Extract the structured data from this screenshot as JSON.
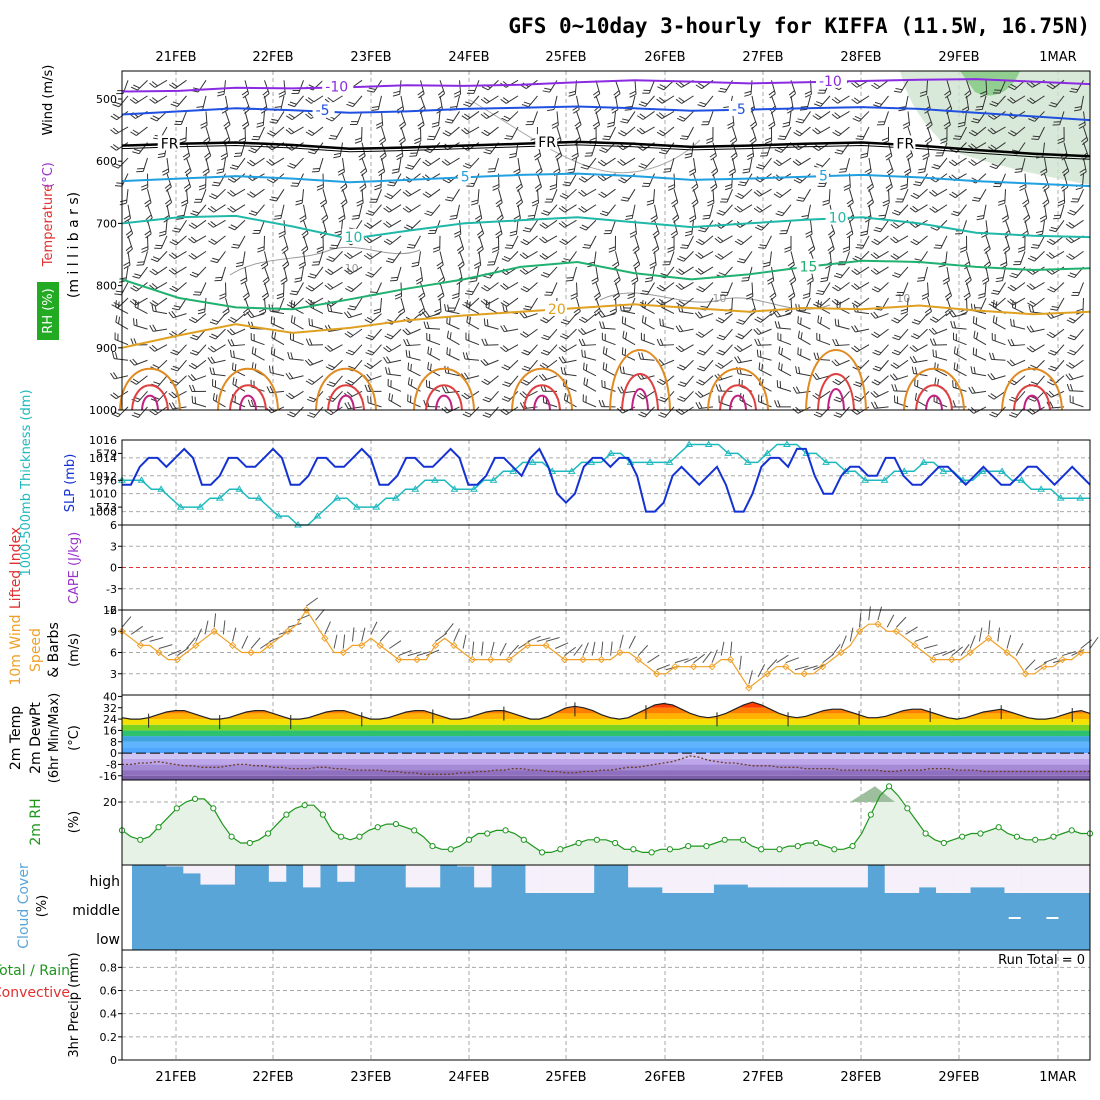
{
  "title": "GFS 0~10day 3-hourly for KIFFA (11.5W, 16.75N)",
  "dates": [
    "21FEB",
    "22FEB",
    "23FEB",
    "24FEB",
    "25FEB",
    "26FEB",
    "27FEB",
    "28FEB",
    "29FEB",
    "1MAR"
  ],
  "colors": {
    "frame": "#000000",
    "grid": "#aaaaaa",
    "slp": "#1432d2",
    "thickness": "#1eb9be",
    "wind10m": "#f0a028",
    "rh": "#1e961e",
    "cloud": "#5aa5d7",
    "cloud_clear": "#f5f0fa",
    "lifted_zero": "#e63232",
    "barb": "#333333"
  },
  "chart_data": [
    {
      "type": "contour",
      "name": "upper-air",
      "ylabel_parts": [
        {
          "text": "RH (%)",
          "color": "#ffffff",
          "bg": "#22aa22"
        },
        {
          "text": "Temperature",
          "color": "#e03030"
        },
        {
          "text": "(°C)",
          "color": "#9933cc"
        },
        {
          "text": "Wind (m/s)",
          "color": "#000000"
        }
      ],
      "ylabel_right": "(m i l l i b a r s)",
      "y_ticks": [
        500,
        600,
        700,
        800,
        900,
        1000
      ],
      "ylim": [
        1000,
        455
      ],
      "isotherms": [
        {
          "label": "-10",
          "value": -10,
          "color": "#8a2be2",
          "levels": [
            488,
            487,
            482,
            483,
            481,
            478,
            479,
            477,
            473,
            470,
            472,
            475,
            473,
            471,
            469,
            468,
            472,
            476
          ]
        },
        {
          "label": "-5",
          "value": -5,
          "color": "#2050e0",
          "levels": [
            525,
            520,
            515,
            518,
            522,
            520,
            516,
            514,
            512,
            515,
            519,
            517,
            515,
            513,
            516,
            522,
            528,
            534
          ]
        },
        {
          "label": "FR",
          "value": 0,
          "color": "#000000",
          "levels": [
            575,
            572,
            570,
            574,
            580,
            578,
            575,
            572,
            569,
            572,
            577,
            575,
            572,
            570,
            575,
            582,
            588,
            592
          ]
        },
        {
          "label": "5",
          "value": 5,
          "color": "#20a0e0",
          "levels": [
            632,
            628,
            624,
            628,
            634,
            630,
            626,
            622,
            620,
            624,
            630,
            628,
            625,
            622,
            626,
            632,
            636,
            640
          ]
        },
        {
          "label": "10",
          "value": 10,
          "color": "#20b8a8",
          "levels": [
            700,
            690,
            688,
            705,
            725,
            712,
            700,
            695,
            690,
            698,
            706,
            700,
            694,
            690,
            700,
            715,
            720,
            722
          ]
        },
        {
          "label": "15",
          "value": 15,
          "color": "#20b070",
          "levels": [
            790,
            820,
            835,
            838,
            822,
            805,
            790,
            770,
            762,
            780,
            790,
            782,
            770,
            760,
            762,
            770,
            775,
            772
          ]
        },
        {
          "label": "20",
          "value": 20,
          "color": "#e0a020",
          "levels": [
            900,
            880,
            862,
            876,
            868,
            856,
            848,
            842,
            836,
            830,
            836,
            842,
            836,
            838,
            832,
            840,
            846,
            842
          ]
        }
      ],
      "contour_labels": [
        {
          "text": "-10",
          "value": -10,
          "x_frac": 0.21,
          "color": "#8a2be2"
        },
        {
          "text": "-5",
          "value": -5,
          "x_frac": 0.2,
          "color": "#2050e0"
        },
        {
          "text": "FR",
          "value": 0,
          "x_frac": 0.04,
          "color": "#000000"
        },
        {
          "text": "FR",
          "value": 0,
          "x_frac": 0.43,
          "color": "#000000"
        },
        {
          "text": "FR",
          "value": 0,
          "x_frac": 0.8,
          "color": "#000000"
        },
        {
          "text": "5",
          "value": 5,
          "x_frac": 0.35,
          "color": "#20a0e0"
        },
        {
          "text": "10",
          "value": 10,
          "x_frac": 0.23,
          "color": "#20b8a8"
        },
        {
          "text": "15",
          "value": 15,
          "x_frac": 0.7,
          "color": "#20b070"
        },
        {
          "text": "20",
          "value": 20,
          "x_frac": 0.44,
          "color": "#e0a020"
        },
        {
          "text": "-10",
          "value": -10,
          "x_frac": 0.72,
          "color": "#8a2be2"
        },
        {
          "text": "-5",
          "value": -5,
          "x_frac": 0.63,
          "color": "#2050e0"
        },
        {
          "text": "5",
          "value": 5,
          "x_frac": 0.72,
          "color": "#20a0e0"
        },
        {
          "text": "10",
          "value": 10,
          "x_frac": 0.73,
          "color": "#20b8a8"
        }
      ],
      "rh_isolines": [
        {
          "label": "10",
          "x_frac": 0.23
        },
        {
          "label": "10",
          "x_frac": 0.61
        },
        {
          "label": "10",
          "x_frac": 0.8
        }
      ]
    },
    {
      "type": "line",
      "name": "slp-thickness",
      "ylabel_left": "1000-500mb Thickness (dm)",
      "ylabel_right": "SLP (mb)",
      "left_ticks": [
        573,
        576,
        579
      ],
      "left_lim": [
        571,
        580.5
      ],
      "right_ticks": [
        1008,
        1010,
        1012,
        1014,
        1016
      ],
      "right_lim": [
        1006.5,
        1016
      ],
      "series": [
        {
          "axis": "right",
          "values": [
            1011,
            1011,
            1013,
            1014,
            1014,
            1013,
            1014,
            1015,
            1014,
            1011,
            1011,
            1012,
            1014,
            1014,
            1013,
            1013,
            1014,
            1015,
            1014,
            1011,
            1011,
            1012,
            1014,
            1014,
            1013,
            1013,
            1014,
            1015,
            1014,
            1011,
            1011,
            1012,
            1014,
            1014,
            1013,
            1013,
            1014,
            1015,
            1014,
            1011,
            1011,
            1012,
            1014,
            1014,
            1013,
            1012,
            1014,
            1015,
            1013,
            1010,
            1009,
            1010,
            1013,
            1014,
            1014,
            1013,
            1014,
            1014,
            1012,
            1008,
            1008,
            1009,
            1012,
            1013,
            1012,
            1011,
            1012,
            1013,
            1011,
            1008,
            1008,
            1010,
            1013,
            1014,
            1014,
            1013,
            1015,
            1015,
            1012,
            1010,
            1010,
            1012,
            1013,
            1013,
            1012,
            1012,
            1014,
            1014,
            1012,
            1011,
            1011,
            1012,
            1013,
            1013,
            1012,
            1011,
            1012,
            1013,
            1012,
            1011,
            1011,
            1012,
            1013,
            1013,
            1012,
            1011,
            1012,
            1013,
            1012,
            1011
          ]
        },
        {
          "axis": "left",
          "values": [
            576,
            576,
            576,
            575,
            575,
            574,
            573,
            573,
            573,
            574,
            574,
            575,
            575,
            574,
            574,
            573,
            572,
            572,
            571,
            571,
            572,
            573,
            574,
            574,
            573,
            573,
            573,
            574,
            574,
            575,
            575,
            576,
            576,
            576,
            575,
            575,
            575,
            576,
            576,
            577,
            577,
            578,
            578,
            578,
            577,
            577,
            577,
            578,
            578,
            578,
            579,
            579,
            578,
            578,
            578,
            578,
            578,
            579,
            580,
            580,
            580,
            580,
            579,
            579,
            578,
            578,
            579,
            580,
            580,
            580,
            579,
            579,
            578,
            578,
            577,
            577,
            576,
            576,
            576,
            577,
            577,
            577,
            578,
            578,
            577,
            577,
            576,
            576,
            577,
            577,
            577,
            576,
            576,
            575,
            575,
            575,
            574,
            574,
            574,
            574
          ]
        }
      ]
    },
    {
      "type": "line",
      "name": "lifted-cape",
      "ylabel_left": "Lifted Index",
      "ylabel_right": "CAPE (J/kg)",
      "y_ticks": [
        6,
        3,
        0,
        -3,
        -6
      ],
      "ylim": [
        6,
        -6
      ]
    },
    {
      "type": "line",
      "name": "wind10m",
      "ylabel_left": "10m Wind Speed & Barbs",
      "ylabel_right": "(m/s)",
      "y_ticks": [
        3,
        6,
        9,
        12
      ],
      "ylim": [
        0,
        12
      ],
      "values": [
        9,
        8,
        7,
        7,
        6,
        5,
        5,
        6,
        7,
        8,
        9,
        8,
        7,
        6,
        6,
        6,
        7,
        8,
        9,
        10,
        12,
        10,
        8,
        6,
        6,
        7,
        7,
        8,
        7,
        6,
        5,
        5,
        5,
        5,
        7,
        8,
        7,
        6,
        5,
        5,
        5,
        5,
        5,
        6,
        7,
        7,
        7,
        6,
        5,
        5,
        5,
        5,
        5,
        5,
        6,
        6,
        5,
        4,
        3,
        3,
        4,
        4,
        4,
        4,
        4,
        5,
        5,
        3,
        1,
        2,
        3,
        4,
        4,
        3,
        3,
        3,
        4,
        5,
        6,
        7,
        9,
        10,
        10,
        9,
        9,
        8,
        7,
        6,
        5,
        5,
        5,
        5,
        6,
        7,
        8,
        7,
        6,
        5,
        3,
        3,
        4,
        4,
        5,
        5,
        6,
        6
      ]
    },
    {
      "type": "area",
      "name": "temp-dewpt",
      "ylabel_left": "2m Temp 2m DewPt (6hr Min/Max)",
      "ylabel_right": "(°C)",
      "y_ticks": [
        40,
        32,
        24,
        16,
        8,
        0,
        -8,
        -16
      ],
      "ylim": [
        -19,
        41
      ],
      "temp": [
        25,
        24,
        24,
        25,
        27,
        29,
        30,
        30,
        28,
        26,
        24,
        24,
        25,
        27,
        29,
        30,
        30,
        28,
        26,
        24,
        24,
        25,
        27,
        29,
        30,
        30,
        28,
        26,
        24,
        24,
        25,
        27,
        29,
        30,
        30,
        28,
        26,
        24,
        24,
        25,
        27,
        29,
        30,
        30,
        28,
        26,
        24,
        24,
        26,
        29,
        32,
        33,
        32,
        30,
        27,
        25,
        24,
        25,
        28,
        31,
        34,
        35,
        34,
        31,
        28,
        26,
        25,
        26,
        28,
        31,
        34,
        36,
        34,
        31,
        28,
        26,
        25,
        26,
        28,
        30,
        31,
        31,
        29,
        27,
        25,
        25,
        26,
        28,
        30,
        31,
        31,
        29,
        27,
        25,
        24,
        25,
        27,
        29,
        30,
        31,
        29,
        27,
        25,
        24,
        24,
        25,
        27,
        29,
        30,
        28
      ],
      "dewpt": [
        -8,
        -8,
        -7,
        -7,
        -6,
        -7,
        -8,
        -9,
        -9,
        -10,
        -10,
        -10,
        -9,
        -8,
        -8,
        -9,
        -9,
        -10,
        -10,
        -11,
        -11,
        -11,
        -10,
        -10,
        -11,
        -11,
        -12,
        -12,
        -12,
        -12,
        -13,
        -13,
        -14,
        -14,
        -15,
        -15,
        -15,
        -15,
        -14,
        -14,
        -13,
        -13,
        -12,
        -12,
        -11,
        -11,
        -12,
        -12,
        -13,
        -13,
        -14,
        -14,
        -13,
        -13,
        -12,
        -12,
        -11,
        -10,
        -10,
        -9,
        -8,
        -7,
        -6,
        -4,
        -2,
        -3,
        -5,
        -6,
        -7,
        -7,
        -8,
        -9,
        -9,
        -9,
        -10,
        -10,
        -10,
        -11,
        -11,
        -11,
        -11,
        -12,
        -12,
        -12,
        -12,
        -12,
        -13,
        -13,
        -12,
        -12,
        -12,
        -11,
        -11,
        -11,
        -12,
        -12,
        -12,
        -13,
        -13,
        -13,
        -13,
        -13,
        -13,
        -13,
        -13,
        -13,
        -13,
        -13,
        -13,
        -13
      ]
    },
    {
      "type": "area",
      "name": "rh2m",
      "ylabel_left": "2m RH",
      "ylabel_right": "(%)",
      "y_ticks": [
        20
      ],
      "ylim": [
        0,
        27
      ],
      "values": [
        11,
        9,
        8,
        9,
        12,
        15,
        18,
        20,
        21,
        21,
        18,
        13,
        9,
        7,
        7,
        8,
        10,
        13,
        16,
        18,
        19,
        19,
        16,
        11,
        9,
        8,
        9,
        11,
        12,
        13,
        13,
        12,
        11,
        9,
        6,
        5,
        5,
        6,
        8,
        10,
        10,
        11,
        11,
        10,
        8,
        6,
        4,
        4,
        5,
        6,
        7,
        8,
        8,
        8,
        7,
        5,
        5,
        4,
        4,
        5,
        5,
        5,
        6,
        6,
        6,
        7,
        8,
        8,
        8,
        6,
        5,
        5,
        5,
        6,
        6,
        7,
        7,
        6,
        5,
        5,
        6,
        10,
        16,
        22,
        25,
        22,
        18,
        14,
        10,
        8,
        7,
        8,
        9,
        10,
        10,
        11,
        12,
        10,
        9,
        8,
        8,
        8,
        9,
        10,
        11,
        10,
        10
      ]
    },
    {
      "type": "bar",
      "name": "cloud-cover",
      "ylabel_left": "Cloud Cover",
      "ylabel_right": "(%)",
      "rows": [
        "high",
        "middle",
        "low"
      ],
      "high": [
        100,
        100,
        95,
        70,
        30,
        30,
        100,
        100,
        40,
        100,
        20,
        100,
        40,
        100,
        100,
        100,
        20,
        20,
        100,
        95,
        20,
        100,
        100,
        0,
        0,
        0,
        0,
        100,
        100,
        20,
        20,
        0,
        0,
        0,
        30,
        30,
        20,
        20,
        20,
        20,
        20,
        20,
        20,
        100,
        0,
        0,
        20,
        0,
        0,
        20,
        20,
        0,
        0,
        0,
        0,
        0
      ],
      "middle_gaps": [
        0.916,
        0.955
      ]
    },
    {
      "type": "bar",
      "name": "precip",
      "ylabel_left": "3hr Precip (mm)",
      "ylabel_right": "",
      "ylabel_green": "Total / Rain",
      "ylabel_red": "Convective",
      "y_ticks": [
        0,
        0.2,
        0.4,
        0.6,
        0.8
      ],
      "ylim": [
        0,
        0.95
      ],
      "run_total": "Run Total = 0"
    }
  ]
}
